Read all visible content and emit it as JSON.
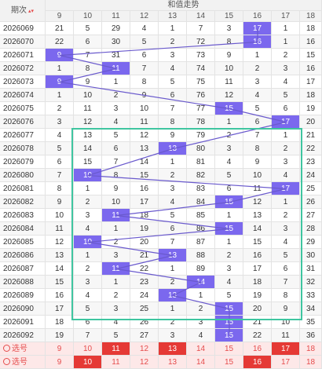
{
  "header": {
    "issue_col": "期次",
    "group_title": "和值走势",
    "columns": [
      "9",
      "10",
      "11",
      "12",
      "13",
      "14",
      "15",
      "16",
      "17"
    ],
    "extra_col": "18"
  },
  "rows": [
    {
      "issue": "2026069",
      "cells": [
        "21",
        "5",
        "29",
        "4",
        "1",
        "7",
        "3",
        "17",
        "1"
      ],
      "hit": 7,
      "extra": "18"
    },
    {
      "issue": "2026070",
      "cells": [
        "22",
        "6",
        "30",
        "5",
        "2",
        "72",
        "8",
        "16",
        "1"
      ],
      "hit": 7,
      "extra": "16"
    },
    {
      "issue": "2026071",
      "cells": [
        "9",
        "7",
        "31",
        "6",
        "3",
        "73",
        "9",
        "1",
        "2"
      ],
      "hit": 0,
      "extra": "15"
    },
    {
      "issue": "2026072",
      "cells": [
        "1",
        "8",
        "11",
        "7",
        "4",
        "74",
        "10",
        "2",
        "3"
      ],
      "hit": 2,
      "extra": "16"
    },
    {
      "issue": "2026073",
      "cells": [
        "9",
        "9",
        "1",
        "8",
        "5",
        "75",
        "11",
        "3",
        "4"
      ],
      "hit": 0,
      "extra": "17"
    },
    {
      "issue": "2026074",
      "cells": [
        "1",
        "10",
        "2",
        "9",
        "6",
        "76",
        "12",
        "4",
        "5"
      ],
      "hit": -1,
      "extra": "18"
    },
    {
      "issue": "2026075",
      "cells": [
        "2",
        "11",
        "3",
        "10",
        "7",
        "77",
        "15",
        "5",
        "6"
      ],
      "hit": 6,
      "extra": "19"
    },
    {
      "issue": "2026076",
      "cells": [
        "3",
        "12",
        "4",
        "11",
        "8",
        "78",
        "1",
        "6",
        "17"
      ],
      "hit": 8,
      "extra": "20"
    },
    {
      "issue": "2026077",
      "cells": [
        "4",
        "13",
        "5",
        "12",
        "9",
        "79",
        "2",
        "7",
        "1"
      ],
      "hit": -1,
      "extra": "21"
    },
    {
      "issue": "2026078",
      "cells": [
        "5",
        "14",
        "6",
        "13",
        "13",
        "80",
        "3",
        "8",
        "2"
      ],
      "hit": 4,
      "extra": "22"
    },
    {
      "issue": "2026079",
      "cells": [
        "6",
        "15",
        "7",
        "14",
        "1",
        "81",
        "4",
        "9",
        "3"
      ],
      "hit": -1,
      "extra": "23"
    },
    {
      "issue": "2026080",
      "cells": [
        "7",
        "10",
        "8",
        "15",
        "2",
        "82",
        "5",
        "10",
        "4"
      ],
      "hit": 1,
      "extra": "24"
    },
    {
      "issue": "2026081",
      "cells": [
        "8",
        "1",
        "9",
        "16",
        "3",
        "83",
        "6",
        "11",
        "17"
      ],
      "hit": 8,
      "extra": "25"
    },
    {
      "issue": "2026082",
      "cells": [
        "9",
        "2",
        "10",
        "17",
        "4",
        "84",
        "15",
        "12",
        "1"
      ],
      "hit": 6,
      "extra": "26"
    },
    {
      "issue": "2026083",
      "cells": [
        "10",
        "3",
        "11",
        "18",
        "5",
        "85",
        "1",
        "13",
        "2"
      ],
      "hit": 2,
      "extra": "27"
    },
    {
      "issue": "2026084",
      "cells": [
        "11",
        "4",
        "1",
        "19",
        "6",
        "86",
        "15",
        "14",
        "3"
      ],
      "hit": 6,
      "extra": "28"
    },
    {
      "issue": "2026085",
      "cells": [
        "12",
        "10",
        "2",
        "20",
        "7",
        "87",
        "1",
        "15",
        "4"
      ],
      "hit": 1,
      "extra": "29"
    },
    {
      "issue": "2026086",
      "cells": [
        "13",
        "1",
        "3",
        "21",
        "13",
        "88",
        "2",
        "16",
        "5"
      ],
      "hit": 4,
      "extra": "30"
    },
    {
      "issue": "2026087",
      "cells": [
        "14",
        "2",
        "11",
        "22",
        "1",
        "89",
        "3",
        "17",
        "6"
      ],
      "hit": 2,
      "extra": "31"
    },
    {
      "issue": "2026088",
      "cells": [
        "15",
        "3",
        "1",
        "23",
        "2",
        "14",
        "4",
        "18",
        "7"
      ],
      "hit": 5,
      "extra": "32"
    },
    {
      "issue": "2026089",
      "cells": [
        "16",
        "4",
        "2",
        "24",
        "13",
        "1",
        "5",
        "19",
        "8"
      ],
      "hit": 4,
      "extra": "33"
    },
    {
      "issue": "2026090",
      "cells": [
        "17",
        "5",
        "3",
        "25",
        "1",
        "2",
        "15",
        "20",
        "9"
      ],
      "hit": 6,
      "extra": "34"
    },
    {
      "issue": "2026091",
      "cells": [
        "18",
        "6",
        "4",
        "26",
        "2",
        "3",
        "15",
        "21",
        "10"
      ],
      "hit": 6,
      "extra": "35"
    },
    {
      "issue": "2026092",
      "cells": [
        "19",
        "7",
        "5",
        "27",
        "3",
        "4",
        "15",
        "22",
        "11"
      ],
      "hit": 6,
      "extra": "36"
    }
  ],
  "select_rows": [
    {
      "label": "选号",
      "cells": [
        "9",
        "10",
        "11",
        "12",
        "13",
        "14",
        "15",
        "16",
        "17"
      ],
      "picked": [
        2,
        4,
        8
      ],
      "extra": "18"
    },
    {
      "label": "选号",
      "cells": [
        "9",
        "10",
        "11",
        "12",
        "13",
        "14",
        "15",
        "16",
        "17"
      ],
      "picked": [
        1,
        7
      ],
      "extra": "18"
    }
  ]
}
